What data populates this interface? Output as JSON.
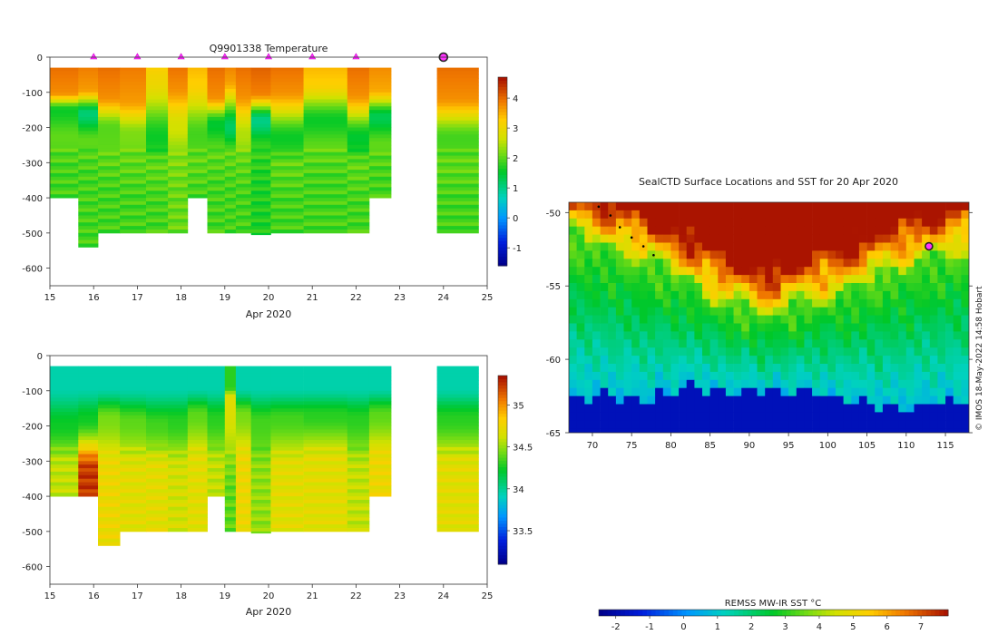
{
  "chart_data": [
    {
      "type": "heatmap",
      "title": "Q9901338  Temperature",
      "xlabel": "Apr 2020",
      "ylabel": "",
      "xlim": [
        15,
        25
      ],
      "ylim": [
        -650,
        0
      ],
      "x_ticks": [
        15,
        16,
        17,
        18,
        19,
        20,
        21,
        22,
        23,
        24,
        25
      ],
      "y_ticks": [
        0,
        -100,
        -200,
        -300,
        -400,
        -500,
        -600
      ],
      "colorbar": {
        "min": -1.6,
        "max": 4.7,
        "ticks": [
          -1,
          0,
          1,
          2,
          3,
          4
        ]
      },
      "profile_markers_x": [
        16,
        17,
        18,
        19,
        20,
        21,
        22
      ],
      "last_marker_x": 24,
      "profiles": [
        {
          "x0": 15.0,
          "x1": 15.65,
          "surface": 4.1,
          "thermocline": 1.6,
          "deep": 1.9,
          "depth_min": 30,
          "depth_max": 400,
          "tc_top": 100,
          "tc_bot": 150
        },
        {
          "x0": 15.65,
          "x1": 16.1,
          "surface": 4.0,
          "thermocline": 1.1,
          "deep": 1.9,
          "depth_min": 30,
          "depth_max": 540,
          "tc_top": 90,
          "tc_bot": 160
        },
        {
          "x0": 16.1,
          "x1": 16.6,
          "surface": 4.1,
          "thermocline": 2.0,
          "deep": 1.9,
          "depth_min": 30,
          "depth_max": 500,
          "tc_top": 110,
          "tc_bot": 200
        },
        {
          "x0": 16.6,
          "x1": 17.2,
          "surface": 4.0,
          "thermocline": 2.2,
          "deep": 1.9,
          "depth_min": 30,
          "depth_max": 500,
          "tc_top": 120,
          "tc_bot": 220
        },
        {
          "x0": 17.2,
          "x1": 17.7,
          "surface": 3.4,
          "thermocline": 1.6,
          "deep": 1.9,
          "depth_min": 30,
          "depth_max": 500,
          "tc_top": 60,
          "tc_bot": 230
        },
        {
          "x0": 17.7,
          "x1": 18.15,
          "surface": 4.1,
          "thermocline": 2.7,
          "deep": 2.1,
          "depth_min": 30,
          "depth_max": 500,
          "tc_top": 80,
          "tc_bot": 200
        },
        {
          "x0": 18.15,
          "x1": 18.6,
          "surface": 3.6,
          "thermocline": 1.9,
          "deep": 1.9,
          "depth_min": 30,
          "depth_max": 400,
          "tc_top": 70,
          "tc_bot": 220
        },
        {
          "x0": 18.6,
          "x1": 19.0,
          "surface": 4.1,
          "thermocline": 1.5,
          "deep": 1.9,
          "depth_min": 30,
          "depth_max": 500,
          "tc_top": 110,
          "tc_bot": 190
        },
        {
          "x0": 19.0,
          "x1": 19.25,
          "surface": 4.0,
          "thermocline": 1.2,
          "deep": 1.9,
          "depth_min": 30,
          "depth_max": 500,
          "tc_top": 60,
          "tc_bot": 200
        },
        {
          "x0": 19.25,
          "x1": 19.6,
          "surface": 4.1,
          "thermocline": 2.5,
          "deep": 1.9,
          "depth_min": 30,
          "depth_max": 500,
          "tc_top": 100,
          "tc_bot": 220
        },
        {
          "x0": 19.6,
          "x1": 20.05,
          "surface": 4.2,
          "thermocline": 1.0,
          "deep": 1.7,
          "depth_min": 30,
          "depth_max": 505,
          "tc_top": 100,
          "tc_bot": 180
        },
        {
          "x0": 20.05,
          "x1": 20.8,
          "surface": 4.1,
          "thermocline": 1.6,
          "deep": 1.9,
          "depth_min": 30,
          "depth_max": 500,
          "tc_top": 90,
          "tc_bot": 230
        },
        {
          "x0": 20.8,
          "x1": 21.8,
          "surface": 3.6,
          "thermocline": 1.6,
          "deep": 1.9,
          "depth_min": 30,
          "depth_max": 500,
          "tc_top": 70,
          "tc_bot": 180
        },
        {
          "x0": 21.8,
          "x1": 22.3,
          "surface": 4.1,
          "thermocline": 1.5,
          "deep": 1.9,
          "depth_min": 30,
          "depth_max": 500,
          "tc_top": 100,
          "tc_bot": 230
        },
        {
          "x0": 22.3,
          "x1": 22.8,
          "surface": 3.9,
          "thermocline": 1.3,
          "deep": 1.9,
          "depth_min": 30,
          "depth_max": 400,
          "tc_top": 90,
          "tc_bot": 170
        },
        {
          "x0": 23.85,
          "x1": 24.8,
          "surface": 4.1,
          "thermocline": 1.9,
          "deep": 1.9,
          "depth_min": 30,
          "depth_max": 500,
          "tc_top": 110,
          "tc_bot": 230
        }
      ]
    },
    {
      "type": "heatmap",
      "title": "",
      "xlabel": "Apr 2020",
      "ylabel": "",
      "xlim": [
        15,
        25
      ],
      "ylim": [
        -650,
        0
      ],
      "x_ticks": [
        15,
        16,
        17,
        18,
        19,
        20,
        21,
        22,
        23,
        24,
        25
      ],
      "y_ticks": [
        0,
        -100,
        -200,
        -300,
        -400,
        -500,
        -600
      ],
      "colorbar": {
        "min": 33.1,
        "max": 35.35,
        "ticks": [
          33.5,
          34,
          34.5,
          35
        ]
      },
      "profiles": [
        {
          "x0": 15.0,
          "x1": 15.65,
          "surface": 33.95,
          "mid": 34.25,
          "deep": 34.6,
          "depth_min": 30,
          "depth_max": 400,
          "mid_depth": 200,
          "deep_depth": 320
        },
        {
          "x0": 15.65,
          "x1": 16.1,
          "surface": 33.95,
          "mid": 34.25,
          "deep": 35.25,
          "depth_min": 30,
          "depth_max": 400,
          "mid_depth": 180,
          "deep_depth": 330
        },
        {
          "x0": 16.1,
          "x1": 16.6,
          "surface": 33.95,
          "mid": 34.45,
          "deep": 34.75,
          "depth_min": 30,
          "depth_max": 540,
          "mid_depth": 180,
          "deep_depth": 320
        },
        {
          "x0": 16.6,
          "x1": 17.2,
          "surface": 33.95,
          "mid": 34.4,
          "deep": 34.7,
          "depth_min": 30,
          "depth_max": 500,
          "mid_depth": 190,
          "deep_depth": 330
        },
        {
          "x0": 17.2,
          "x1": 17.7,
          "surface": 33.95,
          "mid": 34.35,
          "deep": 34.7,
          "depth_min": 30,
          "depth_max": 500,
          "mid_depth": 200,
          "deep_depth": 320
        },
        {
          "x0": 17.7,
          "x1": 18.15,
          "surface": 33.95,
          "mid": 34.3,
          "deep": 34.65,
          "depth_min": 30,
          "depth_max": 500,
          "mid_depth": 190,
          "deep_depth": 330
        },
        {
          "x0": 18.15,
          "x1": 18.6,
          "surface": 33.95,
          "mid": 34.4,
          "deep": 34.7,
          "depth_min": 30,
          "depth_max": 500,
          "mid_depth": 170,
          "deep_depth": 300
        },
        {
          "x0": 18.6,
          "x1": 19.0,
          "surface": 33.95,
          "mid": 34.3,
          "deep": 34.6,
          "depth_min": 30,
          "depth_max": 400,
          "mid_depth": 180,
          "deep_depth": 320
        },
        {
          "x0": 19.0,
          "x1": 19.25,
          "surface": 34.3,
          "mid": 34.7,
          "deep": 34.4,
          "depth_min": 30,
          "depth_max": 500,
          "mid_depth": 120,
          "deep_depth": 400
        },
        {
          "x0": 19.25,
          "x1": 19.6,
          "surface": 33.95,
          "mid": 34.45,
          "deep": 34.75,
          "depth_min": 30,
          "depth_max": 500,
          "mid_depth": 170,
          "deep_depth": 300
        },
        {
          "x0": 19.6,
          "x1": 20.05,
          "surface": 33.95,
          "mid": 34.35,
          "deep": 34.5,
          "depth_min": 30,
          "depth_max": 505,
          "mid_depth": 190,
          "deep_depth": 340
        },
        {
          "x0": 20.05,
          "x1": 20.8,
          "surface": 33.95,
          "mid": 34.35,
          "deep": 34.7,
          "depth_min": 30,
          "depth_max": 500,
          "mid_depth": 180,
          "deep_depth": 320
        },
        {
          "x0": 20.8,
          "x1": 21.8,
          "surface": 33.95,
          "mid": 34.3,
          "deep": 34.7,
          "depth_min": 30,
          "depth_max": 500,
          "mid_depth": 170,
          "deep_depth": 300
        },
        {
          "x0": 21.8,
          "x1": 22.3,
          "surface": 33.95,
          "mid": 34.3,
          "deep": 34.6,
          "depth_min": 30,
          "depth_max": 500,
          "mid_depth": 180,
          "deep_depth": 330
        },
        {
          "x0": 22.3,
          "x1": 22.8,
          "surface": 33.95,
          "mid": 34.4,
          "deep": 34.75,
          "depth_min": 30,
          "depth_max": 400,
          "mid_depth": 170,
          "deep_depth": 300
        },
        {
          "x0": 23.85,
          "x1": 24.8,
          "surface": 33.95,
          "mid": 34.3,
          "deep": 34.7,
          "depth_min": 30,
          "depth_max": 500,
          "mid_depth": 180,
          "deep_depth": 320
        }
      ]
    },
    {
      "type": "heatmap",
      "title": "SealCTD Surface Locations and SST for 20 Apr 2020",
      "xlabel": "",
      "ylabel": "",
      "xlim": [
        67,
        118
      ],
      "ylim": [
        -65,
        -49.3
      ],
      "x_ticks": [
        70,
        75,
        80,
        85,
        90,
        95,
        100,
        105,
        110,
        115
      ],
      "y_ticks": [
        -50,
        -55,
        -60,
        -65
      ],
      "colorbar": {
        "label": "REMSS MW-IR SST °C",
        "min": -2.5,
        "max": 7.8,
        "ticks": [
          -2,
          -1,
          0,
          1,
          2,
          3,
          4,
          5,
          6,
          7
        ]
      },
      "front_lat": [
        -51.5,
        -52.2,
        -53.3,
        -54.6,
        -56.2,
        -57.0,
        -56.0,
        -55.2,
        -54.0,
        -53.0,
        -52.5
      ],
      "ice_lat": [
        -62.6,
        -62.5,
        -62.8,
        -61.8,
        -62.3,
        -62.2,
        -62.4,
        -62.8,
        -63.3,
        -63.0,
        -62.8
      ],
      "track": [
        [
          70.8,
          -49.6
        ],
        [
          72.3,
          -50.2
        ],
        [
          73.5,
          -51.0
        ],
        [
          75.0,
          -51.7
        ],
        [
          76.5,
          -52.3
        ],
        [
          77.8,
          -52.9
        ]
      ],
      "seal_location": [
        112.9,
        -52.3
      ],
      "credit": "© IMOS 18-May-2022 14:58 Hobart"
    }
  ]
}
